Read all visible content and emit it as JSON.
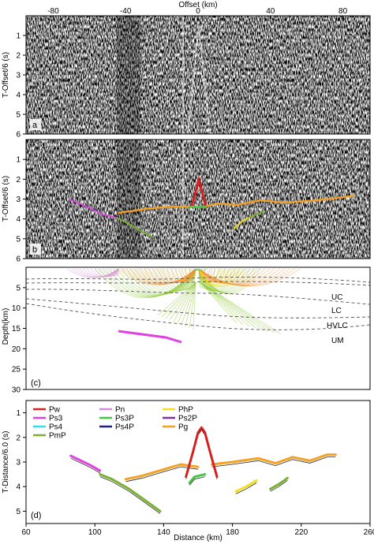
{
  "colors": {
    "Pw": "#d62020",
    "Pn": "#d98ad9",
    "Pg": "#f5a020",
    "Ps3": "#e040e0",
    "Ps3P": "#40c840",
    "PmP": "#7ab030",
    "Ps4": "#30e0e0",
    "Ps4P": "#202080",
    "PhP": "#f0e020",
    "Ps2P": "#8030a0",
    "PmPfan": "#8cc832",
    "Pgfan": "#f59030"
  },
  "panel_a": {
    "label": "a",
    "title": "Offset (km)",
    "ylabel": "T-Offset/6 (s)",
    "xlim": [
      -95,
      95
    ],
    "ylim": [
      0,
      6
    ],
    "xticks": [
      "-80",
      "-40",
      "0",
      "40",
      "80"
    ],
    "yticks": [
      "1",
      "2",
      "3",
      "4",
      "5",
      "6"
    ]
  },
  "panel_b": {
    "label": "b",
    "ylabel": "T-Offset/6 (s)",
    "xlim": [
      -95,
      95
    ],
    "ylim": [
      0,
      6
    ],
    "yticks": [
      "1",
      "2",
      "3",
      "4",
      "5",
      "6"
    ]
  },
  "panel_c": {
    "label": "(c)",
    "ylabel": "Depth(km)",
    "ylim": [
      0,
      30
    ],
    "yticks": [
      "5",
      "10",
      "15",
      "20",
      "25",
      "30"
    ],
    "layers": [
      "UC",
      "LC",
      "HVLC",
      "UM"
    ]
  },
  "chart_data": {
    "type": "line",
    "label": "(d)",
    "xlabel": "Distance (km)",
    "ylabel": "T-Distance/6.0 (s)",
    "xlim": [
      60,
      260
    ],
    "ylim": [
      5.5,
      0.5
    ],
    "xticks": [
      "60",
      "100",
      "140",
      "180",
      "220",
      "260"
    ],
    "yticks": [
      "1",
      "2",
      "3",
      "4",
      "5"
    ],
    "legend": [
      "Pw",
      "Pn",
      "PhP",
      "Ps3",
      "Ps3P",
      "Ps2P",
      "Ps4",
      "Ps4P",
      "Pg",
      "PmP"
    ],
    "series": [
      {
        "name": "Ps3",
        "x": [
          86,
          92,
          98,
          103
        ],
        "y": [
          2.75,
          2.95,
          3.15,
          3.35
        ]
      },
      {
        "name": "Pg",
        "x": [
          118,
          128,
          140,
          150,
          160
        ],
        "y": [
          3.7,
          3.55,
          3.3,
          3.1,
          3.2
        ]
      },
      {
        "name": "Pg",
        "x": [
          168,
          180,
          195,
          205,
          215,
          225,
          235,
          240
        ],
        "y": [
          3.1,
          3.0,
          2.85,
          3.05,
          2.8,
          2.95,
          2.7,
          2.7
        ]
      },
      {
        "name": "PmP",
        "x": [
          103,
          110,
          120,
          130,
          138
        ],
        "y": [
          3.5,
          3.7,
          4.1,
          4.6,
          5.0
        ]
      },
      {
        "name": "PmP",
        "x": [
          202,
          207,
          212
        ],
        "y": [
          4.1,
          3.9,
          3.65
        ]
      },
      {
        "name": "Ps3P",
        "x": [
          155,
          158,
          161,
          164
        ],
        "y": [
          3.85,
          3.6,
          3.55,
          3.5
        ]
      },
      {
        "name": "PhP",
        "x": [
          182,
          188,
          194
        ],
        "y": [
          4.2,
          4.0,
          3.75
        ]
      },
      {
        "name": "Pw",
        "x": [
          153,
          157,
          160,
          162,
          164,
          167,
          171
        ],
        "y": [
          3.6,
          2.6,
          1.8,
          1.6,
          1.8,
          2.6,
          3.6
        ]
      }
    ]
  }
}
